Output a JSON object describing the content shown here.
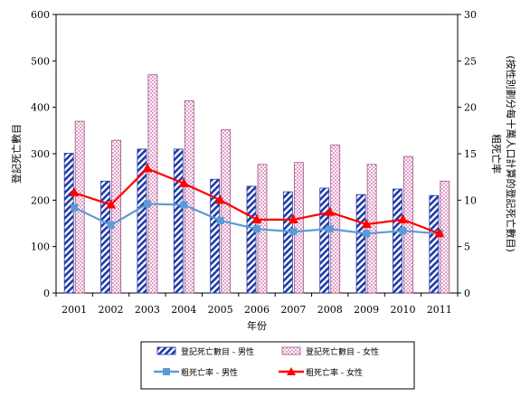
{
  "chart_data": {
    "type": "bar",
    "categories": [
      "2001",
      "2002",
      "2003",
      "2004",
      "2005",
      "2006",
      "2007",
      "2008",
      "2009",
      "2010",
      "2011"
    ],
    "series": [
      {
        "name": "登記死亡數目 - 男性",
        "kind": "bar",
        "axis": "left",
        "color": "#1f3aa6",
        "pattern": "diagonal",
        "values": [
          301,
          241,
          310,
          310,
          245,
          230,
          218,
          226,
          212,
          224,
          210
        ]
      },
      {
        "name": "登記死亡數目 - 女性",
        "kind": "bar",
        "axis": "left",
        "color": "#e0a0c8",
        "pattern": "checker",
        "values": [
          370,
          329,
          470,
          414,
          352,
          277,
          281,
          319,
          277,
          294,
          241
        ]
      },
      {
        "name": "粗死亡率 - 男性",
        "kind": "line",
        "axis": "right",
        "color": "#5b9bd5",
        "marker": "square",
        "values": [
          9.2,
          7.3,
          9.6,
          9.5,
          7.8,
          6.9,
          6.6,
          6.9,
          6.4,
          6.7,
          6.4
        ]
      },
      {
        "name": "粗死亡率 - 女性",
        "kind": "line",
        "axis": "right",
        "color": "#ff0000",
        "marker": "triangle",
        "values": [
          10.8,
          9.5,
          13.4,
          11.8,
          10.0,
          7.9,
          7.9,
          8.7,
          7.4,
          7.9,
          6.4
        ]
      }
    ],
    "xlabel": "年份",
    "ylabel": "登記死亡數目",
    "y2label_line1": "粗死亡率",
    "y2label_line2": "(按性別劃分每十萬人口計算的登記死亡數目)",
    "ylim": [
      0,
      600
    ],
    "y2lim": [
      0,
      30
    ],
    "yticks": [
      "0",
      "100",
      "200",
      "300",
      "400",
      "500",
      "600"
    ],
    "y2ticks": [
      "0",
      "5",
      "10",
      "15",
      "20",
      "25",
      "30"
    ],
    "grid": false,
    "legend_position": "bottom"
  }
}
